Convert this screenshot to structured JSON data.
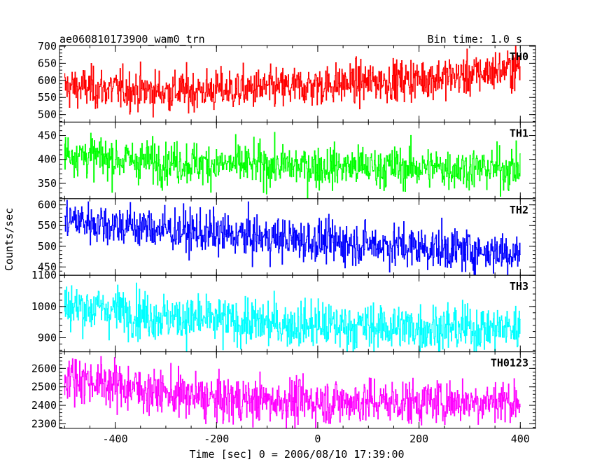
{
  "chart_data": {
    "type": "line",
    "title": "ae060810173900_wam0_trn",
    "subtitle": "Bin time: 1.0 s",
    "xlabel": "Time [sec] 0 = 2006/08/10 17:39:00",
    "ylabel": "Counts/sec",
    "xlim": [
      -510,
      430
    ],
    "x_ticks": [
      -400,
      -200,
      0,
      200,
      400
    ],
    "x": {
      "start": -500,
      "end": 400,
      "step": 1
    },
    "panels": [
      {
        "name": "TH0",
        "color": "#ff0000",
        "ylim": [
          478,
          702
        ],
        "y_ticks": [
          500,
          550,
          600,
          650,
          700
        ],
        "trend": [
          [
            -500,
            580
          ],
          [
            -300,
            568
          ],
          [
            -100,
            575
          ],
          [
            100,
            595
          ],
          [
            300,
            615
          ],
          [
            400,
            640
          ]
        ],
        "noise": 30
      },
      {
        "name": "TH1",
        "color": "#00ff00",
        "ylim": [
          318,
          478
        ],
        "y_ticks": [
          350,
          400,
          450
        ],
        "trend": [
          [
            -500,
            415
          ],
          [
            -400,
            400
          ],
          [
            -200,
            390
          ],
          [
            0,
            385
          ],
          [
            200,
            383
          ],
          [
            400,
            380
          ]
        ],
        "noise": 22
      },
      {
        "name": "TH2",
        "color": "#0000ff",
        "ylim": [
          430,
          615
        ],
        "y_ticks": [
          450,
          500,
          550,
          600
        ],
        "trend": [
          [
            -500,
            565
          ],
          [
            -300,
            540
          ],
          [
            -100,
            520
          ],
          [
            100,
            505
          ],
          [
            300,
            490
          ],
          [
            400,
            485
          ]
        ],
        "noise": 26
      },
      {
        "name": "TH3",
        "color": "#00ffff",
        "ylim": [
          855,
          1100
        ],
        "y_ticks": [
          900,
          1000,
          1100
        ],
        "trend": [
          [
            -500,
            1000
          ],
          [
            -400,
            990
          ],
          [
            -300,
            965
          ],
          [
            -100,
            945
          ],
          [
            100,
            935
          ],
          [
            300,
            930
          ],
          [
            400,
            930
          ]
        ],
        "noise": 38
      },
      {
        "name": "TH0123",
        "color": "#ff00ff",
        "ylim": [
          2275,
          2690
        ],
        "y_ticks": [
          2300,
          2400,
          2500,
          2600
        ],
        "trend": [
          [
            -500,
            2560
          ],
          [
            -400,
            2510
          ],
          [
            -300,
            2465
          ],
          [
            -200,
            2430
          ],
          [
            0,
            2420
          ],
          [
            200,
            2420
          ],
          [
            400,
            2425
          ]
        ],
        "noise": 62
      }
    ]
  }
}
